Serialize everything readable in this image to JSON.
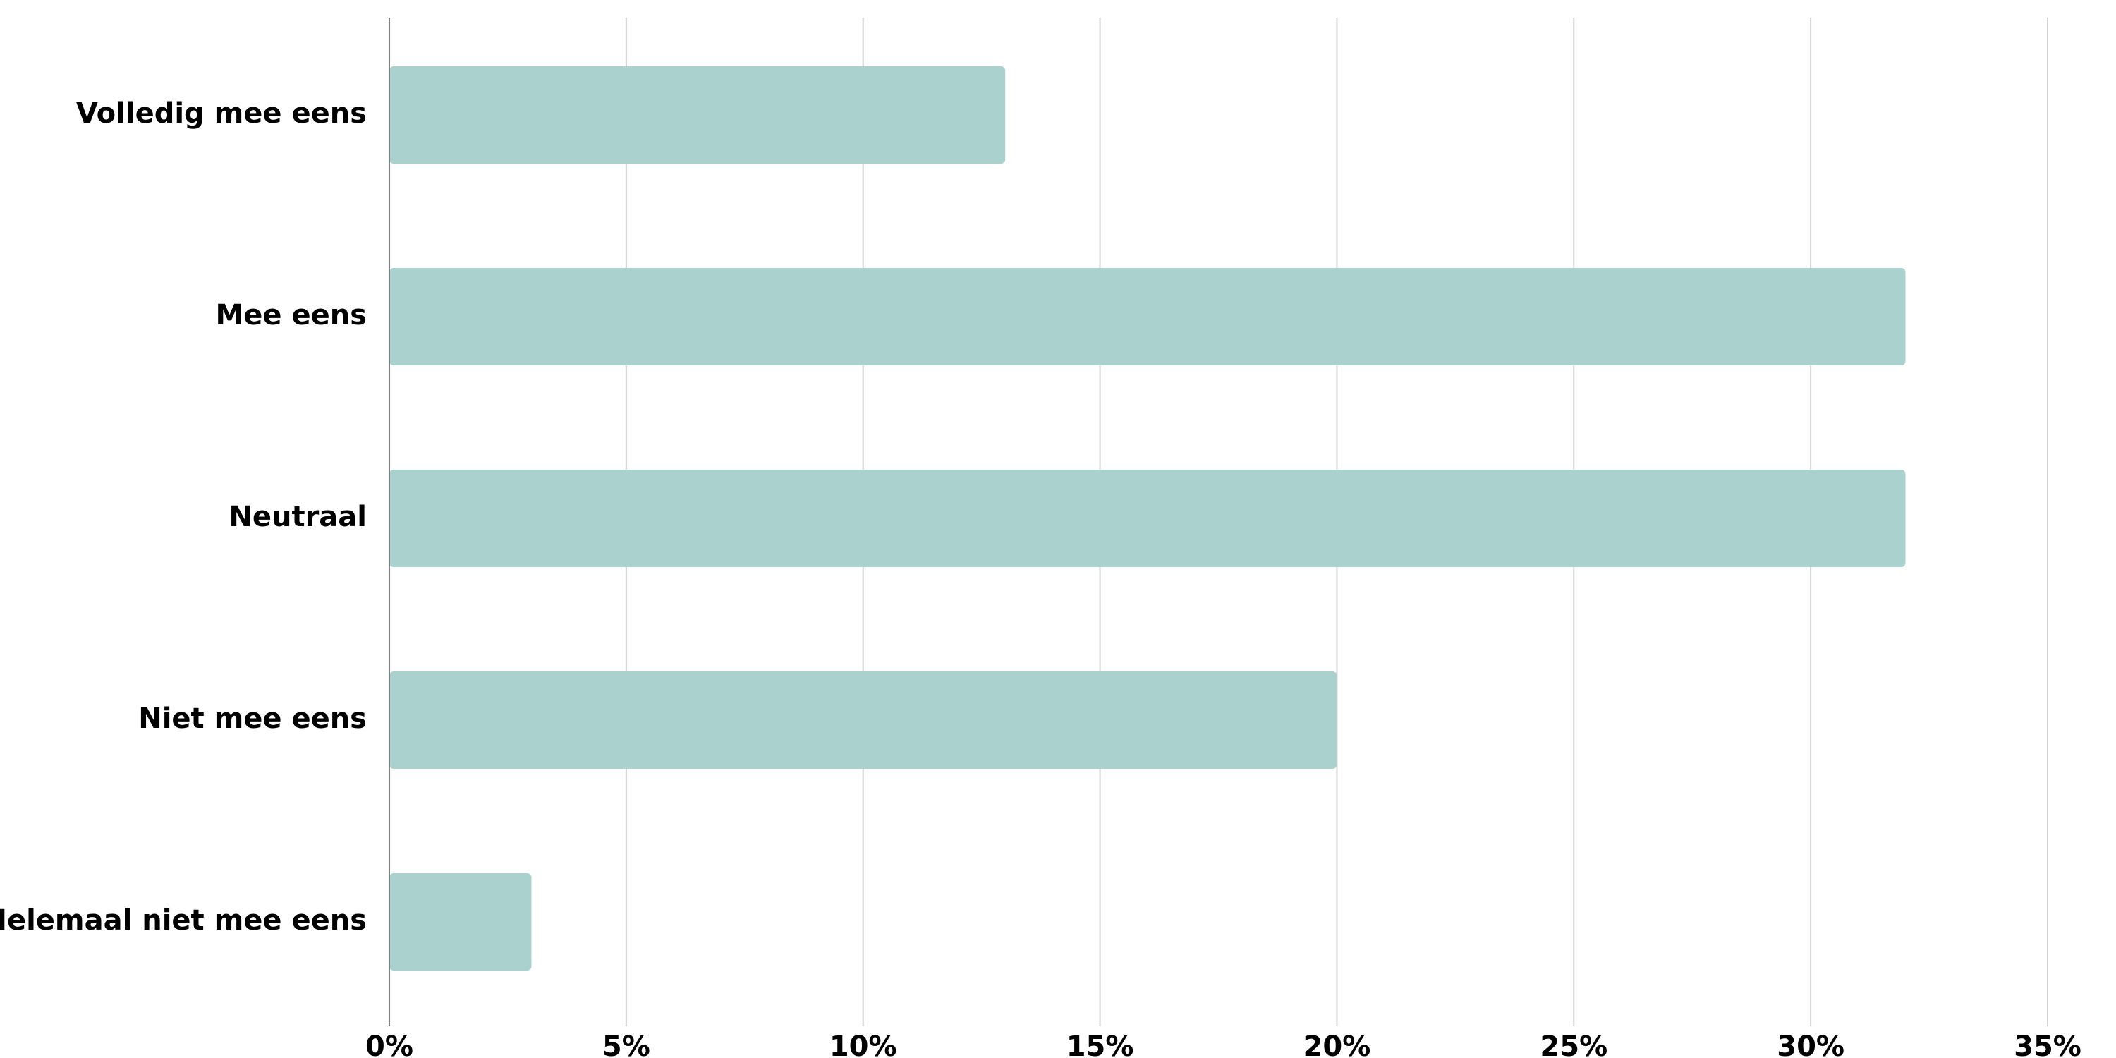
{
  "chart_data": {
    "type": "bar",
    "orientation": "horizontal",
    "title": "",
    "xlabel": "",
    "ylabel": "",
    "categories": [
      "Volledig mee eens",
      "Mee eens",
      "Neutraal",
      "Niet mee eens",
      "Helemaal niet mee eens"
    ],
    "series": [
      {
        "values": [
          13,
          32,
          32,
          20,
          3
        ]
      }
    ],
    "value_unit": "%",
    "xlim": [
      0,
      35
    ],
    "x_ticks": [
      0,
      5,
      10,
      15,
      20,
      25,
      30,
      35
    ],
    "x_tick_labels": [
      "0%",
      "5%",
      "10%",
      "15%",
      "20%",
      "25%",
      "30%",
      "35%"
    ],
    "grid": "vertical",
    "legend": "none",
    "bar_color": "#abd1ce"
  }
}
